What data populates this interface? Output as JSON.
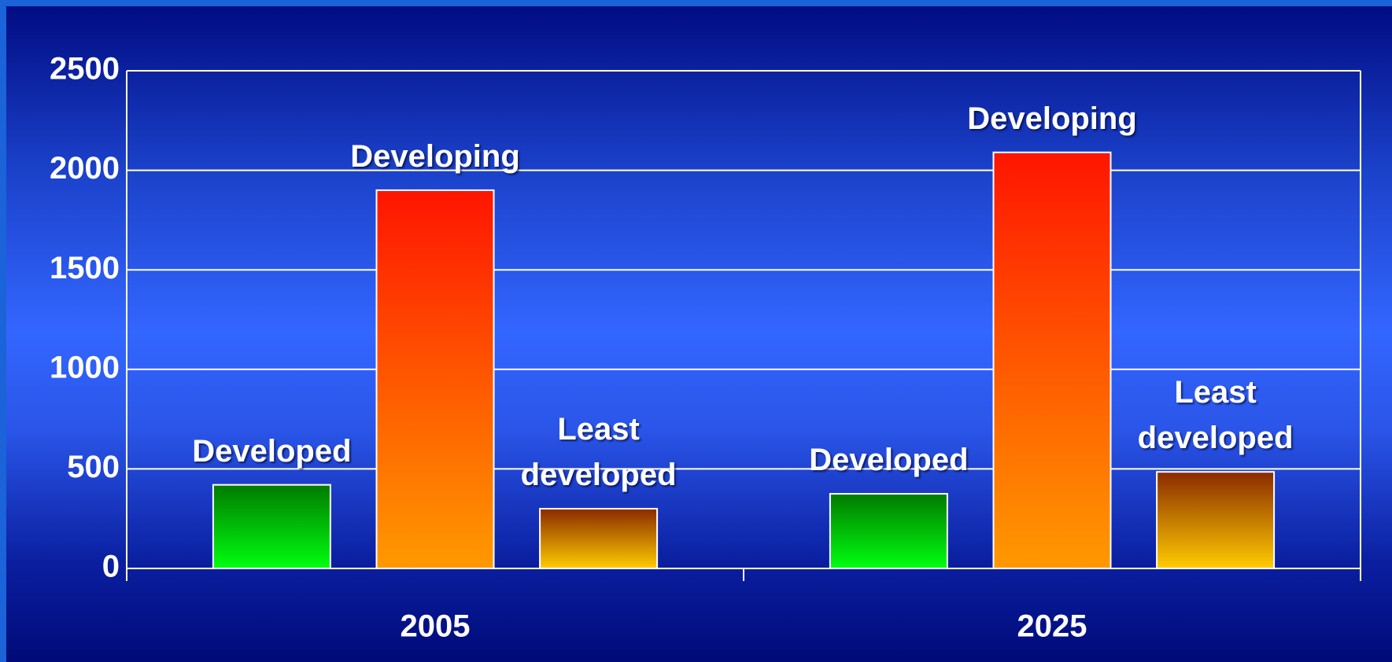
{
  "chart_data": {
    "type": "bar",
    "categories": [
      "2005",
      "2025"
    ],
    "series": [
      {
        "name": "Developed",
        "color": "#00ff10",
        "values": [
          420,
          375
        ]
      },
      {
        "name": "Developing",
        "color": "#ff9900",
        "values": [
          1900,
          2090
        ]
      },
      {
        "name": "Least developed",
        "color": "#ffcc00",
        "values": [
          300,
          485
        ]
      }
    ],
    "ylim": [
      0,
      2500
    ],
    "yticks": [
      0,
      500,
      1000,
      1500,
      2000,
      2500
    ],
    "grid": true
  }
}
